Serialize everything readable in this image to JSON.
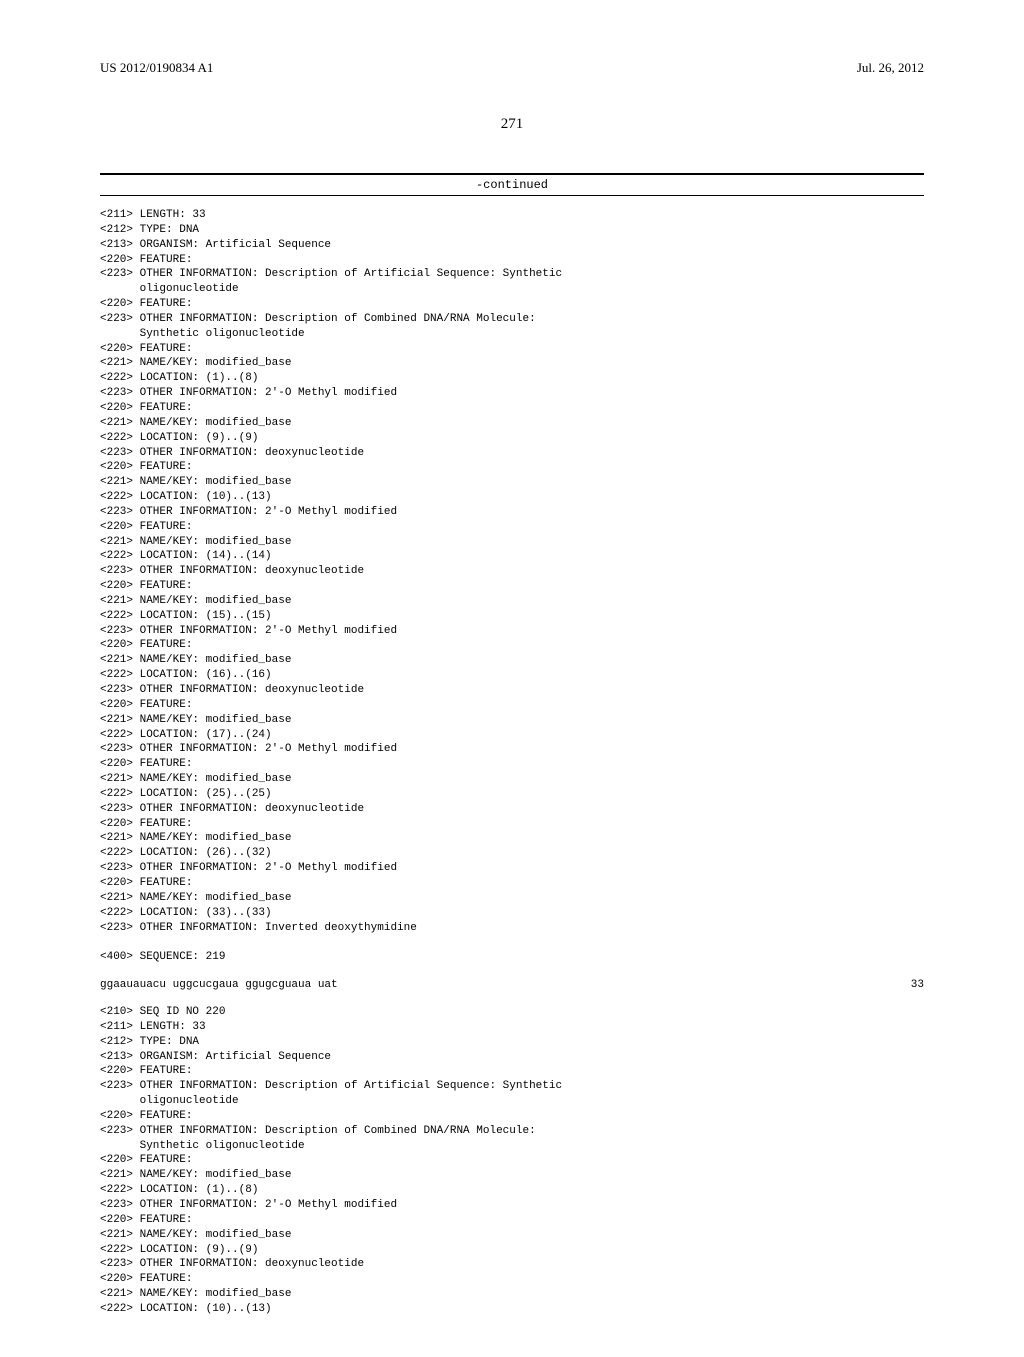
{
  "header": {
    "pub_number": "US 2012/0190834 A1",
    "pub_date": "Jul. 26, 2012"
  },
  "page_number": "271",
  "continued_label": "-continued",
  "listing1": "<211> LENGTH: 33\n<212> TYPE: DNA\n<213> ORGANISM: Artificial Sequence\n<220> FEATURE:\n<223> OTHER INFORMATION: Description of Artificial Sequence: Synthetic\n      oligonucleotide\n<220> FEATURE:\n<223> OTHER INFORMATION: Description of Combined DNA/RNA Molecule:\n      Synthetic oligonucleotide\n<220> FEATURE:\n<221> NAME/KEY: modified_base\n<222> LOCATION: (1)..(8)\n<223> OTHER INFORMATION: 2'-O Methyl modified\n<220> FEATURE:\n<221> NAME/KEY: modified_base\n<222> LOCATION: (9)..(9)\n<223> OTHER INFORMATION: deoxynucleotide\n<220> FEATURE:\n<221> NAME/KEY: modified_base\n<222> LOCATION: (10)..(13)\n<223> OTHER INFORMATION: 2'-O Methyl modified\n<220> FEATURE:\n<221> NAME/KEY: modified_base\n<222> LOCATION: (14)..(14)\n<223> OTHER INFORMATION: deoxynucleotide\n<220> FEATURE:\n<221> NAME/KEY: modified_base\n<222> LOCATION: (15)..(15)\n<223> OTHER INFORMATION: 2'-O Methyl modified\n<220> FEATURE:\n<221> NAME/KEY: modified_base\n<222> LOCATION: (16)..(16)\n<223> OTHER INFORMATION: deoxynucleotide\n<220> FEATURE:\n<221> NAME/KEY: modified_base\n<222> LOCATION: (17)..(24)\n<223> OTHER INFORMATION: 2'-O Methyl modified\n<220> FEATURE:\n<221> NAME/KEY: modified_base\n<222> LOCATION: (25)..(25)\n<223> OTHER INFORMATION: deoxynucleotide\n<220> FEATURE:\n<221> NAME/KEY: modified_base\n<222> LOCATION: (26)..(32)\n<223> OTHER INFORMATION: 2'-O Methyl modified\n<220> FEATURE:\n<221> NAME/KEY: modified_base\n<222> LOCATION: (33)..(33)\n<223> OTHER INFORMATION: Inverted deoxythymidine\n\n<400> SEQUENCE: 219",
  "sequence": {
    "text": "ggaauauacu uggcucgaua ggugcguaua uat",
    "count": "33"
  },
  "listing2": "<210> SEQ ID NO 220\n<211> LENGTH: 33\n<212> TYPE: DNA\n<213> ORGANISM: Artificial Sequence\n<220> FEATURE:\n<223> OTHER INFORMATION: Description of Artificial Sequence: Synthetic\n      oligonucleotide\n<220> FEATURE:\n<223> OTHER INFORMATION: Description of Combined DNA/RNA Molecule:\n      Synthetic oligonucleotide\n<220> FEATURE:\n<221> NAME/KEY: modified_base\n<222> LOCATION: (1)..(8)\n<223> OTHER INFORMATION: 2'-O Methyl modified\n<220> FEATURE:\n<221> NAME/KEY: modified_base\n<222> LOCATION: (9)..(9)\n<223> OTHER INFORMATION: deoxynucleotide\n<220> FEATURE:\n<221> NAME/KEY: modified_base\n<222> LOCATION: (10)..(13)"
}
